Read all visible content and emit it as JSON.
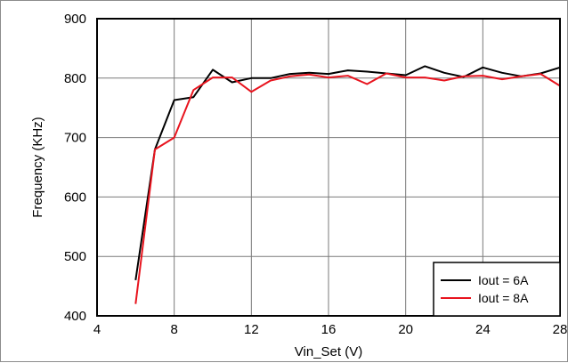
{
  "chart_data": {
    "type": "line",
    "title": "",
    "xlabel": "Vin_Set (V)",
    "ylabel": "Frequency (KHz)",
    "xlim": [
      4,
      28
    ],
    "ylim": [
      400,
      900
    ],
    "xticks": [
      "4",
      "8",
      "12",
      "16",
      "20",
      "24",
      "28"
    ],
    "yticks": [
      "400",
      "500",
      "600",
      "700",
      "800",
      "900"
    ],
    "grid": true,
    "legend": "bottom-right",
    "series": [
      {
        "name": "Iout = 6A",
        "color": "#000000",
        "x": [
          6,
          7,
          8,
          9,
          10,
          11,
          12,
          13,
          14,
          15,
          16,
          17,
          18,
          19,
          20,
          21,
          22,
          23,
          24,
          25,
          26,
          27,
          28
        ],
        "y": [
          460,
          680,
          763,
          768,
          814,
          793,
          800,
          800,
          807,
          809,
          807,
          813,
          811,
          808,
          805,
          820,
          809,
          802,
          818,
          809,
          803,
          808,
          818
        ]
      },
      {
        "name": "Iout = 8A",
        "color": "#e8141e",
        "x": [
          6,
          7,
          8,
          9,
          10,
          11,
          12,
          13,
          14,
          15,
          16,
          17,
          18,
          19,
          20,
          21,
          22,
          23,
          24,
          25,
          26,
          27,
          28
        ],
        "y": [
          420,
          680,
          700,
          780,
          801,
          801,
          777,
          796,
          803,
          806,
          801,
          804,
          790,
          808,
          801,
          801,
          796,
          803,
          804,
          798,
          803,
          807,
          787
        ]
      }
    ]
  }
}
